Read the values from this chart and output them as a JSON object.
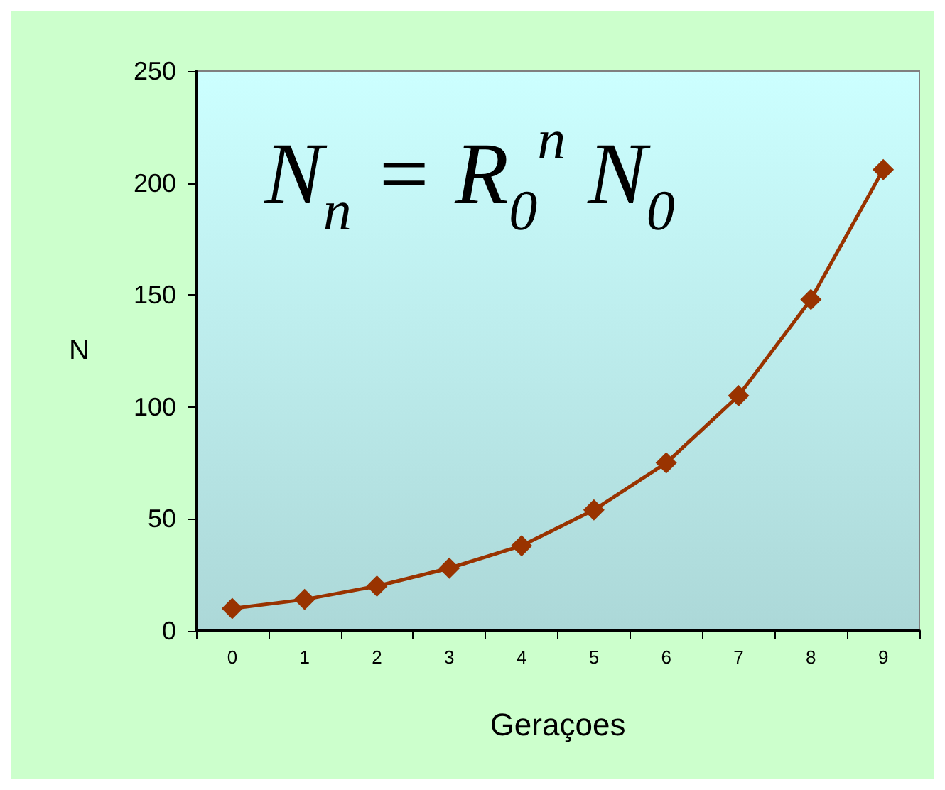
{
  "chart_data": {
    "type": "line",
    "annotations": [
      "N$_{n}$ = R$_{0}$$^{n}$ N$_{0}$"
    ],
    "xlabel": "Geraçoes",
    "ylabel": "N",
    "categories": [
      "0",
      "1",
      "2",
      "3",
      "4",
      "5",
      "6",
      "7",
      "8",
      "9"
    ],
    "series": [
      {
        "color": "#993300",
        "values": [
          10,
          14,
          20,
          28,
          38,
          54,
          75,
          105,
          148,
          206
        ]
      }
    ],
    "ylim": [
      0,
      250
    ],
    "yticks": [
      0,
      50,
      100,
      150,
      200,
      250
    ],
    "grid": false,
    "marker": "diamond",
    "line_style": "solid"
  }
}
